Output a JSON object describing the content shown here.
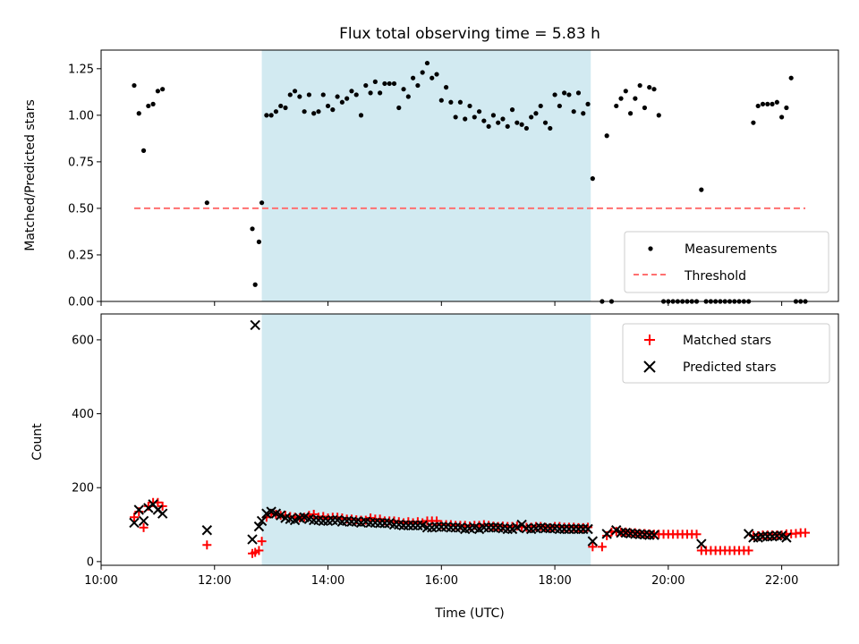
{
  "chart_data": [
    {
      "type": "scatter",
      "title": "Flux total observing time = 5.83 h",
      "xlabel": "",
      "ylabel": "Matched/Predicted stars",
      "xlim": [
        "10:00",
        "23:00"
      ],
      "ylim": [
        0,
        1.35
      ],
      "yticks": [
        "0.00",
        "0.25",
        "0.50",
        "0.75",
        "1.00",
        "1.25"
      ],
      "shaded_interval": {
        "start": "12:50",
        "end": "18:38",
        "color": "#add8e6"
      },
      "legend": {
        "position": "lower-right",
        "entries": [
          "Measurements",
          "Threshold"
        ]
      },
      "series": [
        {
          "name": "Measurements",
          "kind": "points",
          "color": "#000000",
          "x": [
            "10:35",
            "10:40",
            "10:45",
            "10:50",
            "10:55",
            "11:00",
            "11:05",
            "11:52",
            "12:40",
            "12:43",
            "12:47",
            "12:50",
            "12:55",
            "13:00",
            "13:05",
            "13:10",
            "13:15",
            "13:20",
            "13:25",
            "13:30",
            "13:35",
            "13:40",
            "13:45",
            "13:50",
            "13:55",
            "14:00",
            "14:05",
            "14:10",
            "14:15",
            "14:20",
            "14:25",
            "14:30",
            "14:35",
            "14:40",
            "14:45",
            "14:50",
            "14:55",
            "15:00",
            "15:05",
            "15:10",
            "15:15",
            "15:20",
            "15:25",
            "15:30",
            "15:35",
            "15:40",
            "15:45",
            "15:50",
            "15:55",
            "16:00",
            "16:05",
            "16:10",
            "16:15",
            "16:20",
            "16:25",
            "16:30",
            "16:35",
            "16:40",
            "16:45",
            "16:50",
            "16:55",
            "17:00",
            "17:05",
            "17:10",
            "17:15",
            "17:20",
            "17:25",
            "17:30",
            "17:35",
            "17:40",
            "17:45",
            "17:50",
            "17:55",
            "18:00",
            "18:05",
            "18:10",
            "18:15",
            "18:20",
            "18:25",
            "18:30",
            "18:35",
            "18:40",
            "18:50",
            "18:55",
            "19:00",
            "19:05",
            "19:10",
            "19:15",
            "19:20",
            "19:25",
            "19:30",
            "19:35",
            "19:40",
            "19:45",
            "19:50",
            "19:55",
            "20:00",
            "20:05",
            "20:10",
            "20:15",
            "20:20",
            "20:25",
            "20:30",
            "20:35",
            "20:40",
            "20:45",
            "20:50",
            "20:55",
            "21:00",
            "21:05",
            "21:10",
            "21:15",
            "21:20",
            "21:25",
            "21:30",
            "21:35",
            "21:40",
            "21:45",
            "21:50",
            "21:55",
            "22:00",
            "22:05",
            "22:10",
            "22:15",
            "22:20",
            "22:25"
          ],
          "y": [
            1.16,
            1.01,
            0.81,
            1.05,
            1.06,
            1.13,
            1.14,
            0.53,
            0.39,
            0.09,
            0.32,
            0.53,
            1.0,
            1.0,
            1.02,
            1.05,
            1.04,
            1.11,
            1.13,
            1.1,
            1.02,
            1.11,
            1.01,
            1.02,
            1.11,
            1.05,
            1.03,
            1.1,
            1.07,
            1.09,
            1.13,
            1.11,
            1.0,
            1.16,
            1.12,
            1.18,
            1.12,
            1.17,
            1.17,
            1.17,
            1.04,
            1.14,
            1.1,
            1.2,
            1.16,
            1.23,
            1.28,
            1.2,
            1.22,
            1.08,
            1.15,
            1.07,
            0.99,
            1.07,
            0.98,
            1.05,
            0.99,
            1.02,
            0.97,
            0.94,
            1.0,
            0.96,
            0.98,
            0.94,
            1.03,
            0.96,
            0.95,
            0.93,
            0.99,
            1.01,
            1.05,
            0.96,
            0.93,
            1.11,
            1.05,
            1.12,
            1.11,
            1.02,
            1.12,
            1.01,
            1.06,
            0.66,
            0.0,
            0.89,
            0.0,
            1.05,
            1.09,
            1.13,
            1.01,
            1.09,
            1.16,
            1.04,
            1.15,
            1.14,
            1.0,
            0.0,
            0.0,
            0.0,
            0.0,
            0.0,
            0.0,
            0.0,
            0.0,
            0.6,
            0.0,
            0.0,
            0.0,
            0.0,
            0.0,
            0.0,
            0.0,
            0.0,
            0.0,
            0.0,
            0.96,
            1.05,
            1.06,
            1.06,
            1.06,
            1.07,
            0.99,
            1.04,
            1.2,
            0.0,
            0.0,
            0.0
          ]
        },
        {
          "name": "Threshold",
          "kind": "dashed-line",
          "color": "#ff7070",
          "x": [
            "10:35",
            "22:25"
          ],
          "y": [
            0.5,
            0.5
          ]
        }
      ]
    },
    {
      "type": "scatter",
      "title": "",
      "xlabel": "Time (UTC)",
      "ylabel": "Count",
      "xlim": [
        "10:00",
        "23:00"
      ],
      "ylim": [
        -10,
        670
      ],
      "xticks": [
        "10:00",
        "12:00",
        "14:00",
        "16:00",
        "18:00",
        "20:00",
        "22:00"
      ],
      "yticks": [
        "0",
        "200",
        "400",
        "600"
      ],
      "shaded_interval": {
        "start": "12:50",
        "end": "18:38",
        "color": "#add8e6"
      },
      "legend": {
        "position": "upper-right",
        "entries": [
          "Matched stars",
          "Predicted stars"
        ]
      },
      "series": [
        {
          "name": "Matched stars",
          "kind": "plus",
          "color": "#ff0000",
          "x": [
            "10:35",
            "10:40",
            "10:45",
            "10:50",
            "10:55",
            "11:00",
            "11:05",
            "11:52",
            "12:40",
            "12:43",
            "12:47",
            "12:50",
            "12:55",
            "13:00",
            "13:05",
            "13:10",
            "13:15",
            "13:20",
            "13:25",
            "13:30",
            "13:35",
            "13:40",
            "13:45",
            "13:50",
            "13:55",
            "14:00",
            "14:05",
            "14:10",
            "14:15",
            "14:20",
            "14:25",
            "14:30",
            "14:35",
            "14:40",
            "14:45",
            "14:50",
            "14:55",
            "15:00",
            "15:05",
            "15:10",
            "15:15",
            "15:20",
            "15:25",
            "15:30",
            "15:35",
            "15:40",
            "15:45",
            "15:50",
            "15:55",
            "16:00",
            "16:05",
            "16:10",
            "16:15",
            "16:20",
            "16:25",
            "16:30",
            "16:35",
            "16:40",
            "16:45",
            "16:50",
            "16:55",
            "17:00",
            "17:05",
            "17:10",
            "17:15",
            "17:20",
            "17:25",
            "17:30",
            "17:35",
            "17:40",
            "17:45",
            "17:50",
            "17:55",
            "18:00",
            "18:05",
            "18:10",
            "18:15",
            "18:20",
            "18:25",
            "18:30",
            "18:35",
            "18:40",
            "18:50",
            "18:55",
            "19:00",
            "19:05",
            "19:10",
            "19:15",
            "19:20",
            "19:25",
            "19:30",
            "19:35",
            "19:40",
            "19:45",
            "19:50",
            "19:55",
            "20:00",
            "20:05",
            "20:10",
            "20:15",
            "20:20",
            "20:25",
            "20:30",
            "20:35",
            "20:40",
            "20:45",
            "20:50",
            "20:55",
            "21:00",
            "21:05",
            "21:10",
            "21:15",
            "21:20",
            "21:25",
            "21:30",
            "21:35",
            "21:40",
            "21:45",
            "21:50",
            "21:55",
            "22:00",
            "22:05",
            "22:10",
            "22:15",
            "22:20",
            "22:25"
          ],
          "y": [
            120,
            135,
            92,
            150,
            160,
            160,
            150,
            45,
            22,
            25,
            30,
            55,
            120,
            130,
            128,
            125,
            125,
            122,
            120,
            118,
            120,
            125,
            128,
            120,
            122,
            118,
            120,
            120,
            118,
            115,
            115,
            113,
            112,
            112,
            118,
            115,
            115,
            110,
            110,
            110,
            108,
            105,
            108,
            105,
            108,
            105,
            110,
            110,
            110,
            100,
            100,
            100,
            98,
            98,
            98,
            96,
            98,
            98,
            100,
            98,
            96,
            95,
            96,
            95,
            95,
            96,
            93,
            93,
            93,
            95,
            95,
            93,
            92,
            95,
            95,
            93,
            93,
            93,
            92,
            92,
            93,
            40,
            40,
            70,
            80,
            82,
            80,
            80,
            78,
            78,
            76,
            76,
            75,
            74,
            74,
            74,
            74,
            74,
            74,
            74,
            74,
            74,
            74,
            30,
            30,
            30,
            30,
            30,
            30,
            30,
            30,
            30,
            30,
            30,
            70,
            70,
            72,
            72,
            72,
            72,
            72,
            75,
            75,
            76,
            78,
            78
          ]
        },
        {
          "name": "Predicted stars",
          "kind": "cross",
          "color": "#000000",
          "x": [
            "10:35",
            "10:40",
            "10:45",
            "10:50",
            "10:55",
            "11:00",
            "11:05",
            "11:52",
            "12:40",
            "12:43",
            "12:47",
            "12:50",
            "12:55",
            "13:00",
            "13:05",
            "13:10",
            "13:15",
            "13:20",
            "13:25",
            "13:30",
            "13:35",
            "13:40",
            "13:45",
            "13:50",
            "13:55",
            "14:00",
            "14:05",
            "14:10",
            "14:15",
            "14:20",
            "14:25",
            "14:30",
            "14:35",
            "14:40",
            "14:45",
            "14:50",
            "14:55",
            "15:00",
            "15:05",
            "15:10",
            "15:15",
            "15:20",
            "15:25",
            "15:30",
            "15:35",
            "15:40",
            "15:45",
            "15:50",
            "15:55",
            "16:00",
            "16:05",
            "16:10",
            "16:15",
            "16:20",
            "16:25",
            "16:30",
            "16:35",
            "16:40",
            "16:45",
            "16:50",
            "16:55",
            "17:00",
            "17:05",
            "17:10",
            "17:15",
            "17:20",
            "17:25",
            "17:30",
            "17:35",
            "17:40",
            "17:45",
            "17:50",
            "17:55",
            "18:00",
            "18:05",
            "18:10",
            "18:15",
            "18:20",
            "18:25",
            "18:30",
            "18:35",
            "18:40",
            "18:55",
            "19:05",
            "19:10",
            "19:15",
            "19:20",
            "19:25",
            "19:30",
            "19:35",
            "19:40",
            "19:45",
            "20:35",
            "21:25",
            "21:30",
            "21:35",
            "21:40",
            "21:45",
            "21:50",
            "21:55",
            "22:00",
            "22:05"
          ],
          "y": [
            105,
            140,
            110,
            145,
            155,
            140,
            130,
            85,
            60,
            640,
            95,
            110,
            130,
            135,
            130,
            125,
            118,
            115,
            112,
            118,
            120,
            115,
            112,
            112,
            110,
            110,
            112,
            112,
            108,
            110,
            108,
            108,
            105,
            108,
            105,
            105,
            104,
            104,
            104,
            100,
            100,
            98,
            98,
            98,
            98,
            98,
            92,
            92,
            94,
            94,
            94,
            92,
            92,
            92,
            88,
            90,
            92,
            88,
            92,
            92,
            92,
            92,
            90,
            88,
            88,
            92,
            100,
            90,
            88,
            90,
            92,
            90,
            90,
            90,
            88,
            88,
            88,
            88,
            88,
            88,
            88,
            55,
            75,
            85,
            78,
            78,
            76,
            75,
            74,
            73,
            72,
            72,
            48,
            75,
            65,
            65,
            68,
            68,
            68,
            70,
            70,
            65
          ]
        }
      ]
    }
  ]
}
